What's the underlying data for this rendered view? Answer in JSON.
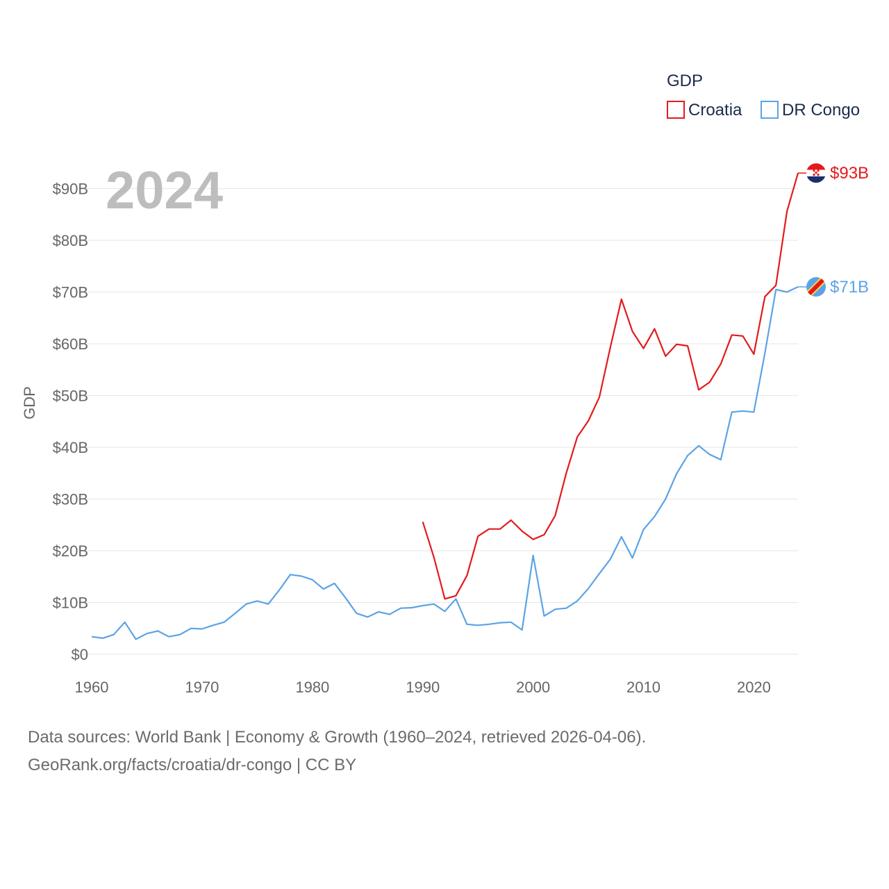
{
  "chart_data": {
    "type": "line",
    "title": "GDP",
    "ylabel": "GDP",
    "xlabel": "",
    "year_label": "2024",
    "xlim": [
      1960,
      2024
    ],
    "ylim": [
      0,
      95
    ],
    "x_ticks": [
      {
        "value": 1960,
        "label": "1960"
      },
      {
        "value": 1970,
        "label": "1970"
      },
      {
        "value": 1980,
        "label": "1980"
      },
      {
        "value": 1990,
        "label": "1990"
      },
      {
        "value": 2000,
        "label": "2000"
      },
      {
        "value": 2010,
        "label": "2010"
      },
      {
        "value": 2020,
        "label": "2020"
      }
    ],
    "y_ticks": [
      {
        "value": 0,
        "label": "$0"
      },
      {
        "value": 10,
        "label": "$10B"
      },
      {
        "value": 20,
        "label": "$20B"
      },
      {
        "value": 30,
        "label": "$30B"
      },
      {
        "value": 40,
        "label": "$40B"
      },
      {
        "value": 50,
        "label": "$50B"
      },
      {
        "value": 60,
        "label": "$60B"
      },
      {
        "value": 70,
        "label": "$70B"
      },
      {
        "value": 80,
        "label": "$80B"
      },
      {
        "value": 90,
        "label": "$90B"
      }
    ],
    "legend": {
      "title": "GDP",
      "position": "top-right"
    },
    "series": [
      {
        "name": "Croatia",
        "color": "#e31a1c",
        "end_label": "$93B",
        "x": [
          1990,
          1991,
          1992,
          1993,
          1994,
          1995,
          1996,
          1997,
          1998,
          1999,
          2000,
          2001,
          2002,
          2003,
          2004,
          2005,
          2006,
          2007,
          2008,
          2009,
          2010,
          2011,
          2012,
          2013,
          2014,
          2015,
          2016,
          2017,
          2018,
          2019,
          2020,
          2021,
          2022,
          2023,
          2024
        ],
        "values": [
          25.6,
          18.8,
          10.7,
          11.3,
          15.2,
          22.8,
          24.2,
          24.2,
          25.9,
          23.8,
          22.2,
          23.1,
          26.8,
          35.0,
          42.0,
          45.1,
          49.7,
          59.4,
          68.6,
          62.4,
          59.1,
          62.9,
          57.6,
          59.9,
          59.6,
          51.1,
          52.6,
          56.1,
          61.7,
          61.5,
          58.0,
          69.1,
          71.3,
          85.6,
          93.0
        ]
      },
      {
        "name": "DR Congo",
        "color": "#5ba3e6",
        "end_label": "$71B",
        "x": [
          1960,
          1961,
          1962,
          1963,
          1964,
          1965,
          1966,
          1967,
          1968,
          1969,
          1970,
          1971,
          1972,
          1973,
          1974,
          1975,
          1976,
          1977,
          1978,
          1979,
          1980,
          1981,
          1982,
          1983,
          1984,
          1985,
          1986,
          1987,
          1988,
          1989,
          1990,
          1991,
          1992,
          1993,
          1994,
          1995,
          1996,
          1997,
          1998,
          1999,
          2000,
          2001,
          2002,
          2003,
          2004,
          2005,
          2006,
          2007,
          2008,
          2009,
          2010,
          2011,
          2012,
          2013,
          2014,
          2015,
          2016,
          2017,
          2018,
          2019,
          2020,
          2021,
          2022,
          2023,
          2024
        ],
        "values": [
          3.4,
          3.1,
          3.8,
          6.2,
          2.9,
          4.0,
          4.5,
          3.4,
          3.8,
          5.0,
          4.9,
          5.6,
          6.2,
          7.9,
          9.7,
          10.3,
          9.7,
          12.4,
          15.4,
          15.1,
          14.4,
          12.6,
          13.7,
          10.9,
          7.9,
          7.2,
          8.2,
          7.7,
          8.9,
          9.0,
          9.4,
          9.7,
          8.3,
          10.7,
          5.8,
          5.6,
          5.8,
          6.1,
          6.2,
          4.7,
          19.1,
          7.4,
          8.7,
          8.9,
          10.3,
          12.7,
          15.6,
          18.4,
          22.7,
          18.6,
          24.1,
          26.6,
          30.0,
          34.9,
          38.4,
          40.3,
          38.6,
          37.6,
          46.8,
          47.0,
          46.8,
          58.2,
          70.5,
          70.0,
          71.0
        ]
      }
    ]
  },
  "footer": {
    "line1": "Data sources: World Bank | Economy & Growth (1960–2024, retrieved 2026-04-06).",
    "line2": "GeoRank.org/facts/croatia/dr-congo | CC BY"
  }
}
